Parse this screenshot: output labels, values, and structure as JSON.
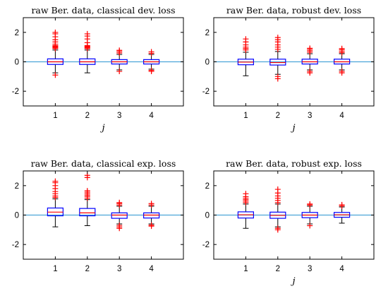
{
  "colors": {
    "box": "#0000ff",
    "median": "#ff0000",
    "outlier": "#ff0000",
    "whisker": "#000000",
    "zero_line": "#4ca6d9",
    "axes": "#000000"
  },
  "chart_data": [
    {
      "type": "box",
      "title": "raw Ber. data, classical dev. loss",
      "xlabel": "j",
      "ylabel": "",
      "categories": [
        "1",
        "2",
        "3",
        "4"
      ],
      "ylim": [
        -3,
        3
      ],
      "yticks": [
        -2,
        0,
        2
      ],
      "reference_line_y": 0,
      "boxes": [
        {
          "q1": -0.18,
          "median": 0.0,
          "q3": 0.2,
          "wlow": -0.75,
          "whigh": 0.8,
          "outliers": [
            -0.9,
            0.9,
            0.95,
            1.0,
            1.05,
            1.1,
            1.2,
            1.35,
            1.5,
            1.7,
            1.9,
            2.0
          ]
        },
        {
          "q1": -0.18,
          "median": 0.0,
          "q3": 0.2,
          "wlow": -0.75,
          "whigh": 0.8,
          "outliers": [
            0.9,
            0.95,
            1.0,
            1.05,
            1.1,
            1.3,
            1.55,
            1.75,
            1.9
          ]
        },
        {
          "q1": -0.15,
          "median": 0.0,
          "q3": 0.15,
          "wlow": -0.55,
          "whigh": 0.5,
          "outliers": [
            -0.65,
            0.6,
            0.7,
            0.78
          ]
        },
        {
          "q1": -0.15,
          "median": 0.0,
          "q3": 0.15,
          "wlow": -0.5,
          "whigh": 0.5,
          "outliers": [
            -0.65,
            -0.58,
            0.58,
            0.68
          ]
        }
      ]
    },
    {
      "type": "box",
      "title": "raw Ber. data, robust dev. loss",
      "xlabel": "j",
      "ylabel": "",
      "categories": [
        "1",
        "2",
        "3",
        "4"
      ],
      "ylim": [
        -3,
        3
      ],
      "yticks": [
        -2,
        0,
        2
      ],
      "reference_line_y": 0,
      "boxes": [
        {
          "q1": -0.2,
          "median": -0.02,
          "q3": 0.18,
          "wlow": -0.95,
          "whigh": 0.65,
          "outliers": [
            0.8,
            0.9,
            1.0,
            1.15,
            1.35,
            1.55
          ]
        },
        {
          "q1": -0.22,
          "median": -0.05,
          "q3": 0.18,
          "wlow": -0.85,
          "whigh": 0.7,
          "outliers": [
            -1.15,
            -1.0,
            0.85,
            1.0,
            1.15,
            1.35,
            1.5,
            1.65
          ]
        },
        {
          "q1": -0.15,
          "median": 0.0,
          "q3": 0.18,
          "wlow": -0.55,
          "whigh": 0.55,
          "outliers": [
            -0.75,
            -0.65,
            0.65,
            0.75,
            0.85,
            0.92
          ]
        },
        {
          "q1": -0.15,
          "median": 0.0,
          "q3": 0.18,
          "wlow": -0.55,
          "whigh": 0.55,
          "outliers": [
            -0.75,
            -0.65,
            0.62,
            0.72,
            0.82,
            0.9
          ]
        }
      ]
    },
    {
      "type": "box",
      "title": "raw Ber. data, classical exp. loss",
      "xlabel": "",
      "ylabel": "",
      "categories": [
        "1",
        "2",
        "3",
        "4"
      ],
      "ylim": [
        -3,
        3
      ],
      "yticks": [
        -2,
        0,
        2
      ],
      "reference_line_y": 0,
      "boxes": [
        {
          "q1": -0.05,
          "median": 0.2,
          "q3": 0.48,
          "wlow": -0.8,
          "whigh": 1.1,
          "outliers": [
            1.2,
            1.3,
            1.45,
            1.6,
            1.8,
            2.0,
            2.2,
            2.3
          ]
        },
        {
          "q1": -0.05,
          "median": 0.15,
          "q3": 0.45,
          "wlow": -0.72,
          "whigh": 1.05,
          "outliers": [
            1.15,
            1.25,
            1.35,
            1.45,
            1.55,
            1.65,
            2.55,
            2.7
          ]
        },
        {
          "q1": -0.22,
          "median": 0.0,
          "q3": 0.15,
          "wlow": -0.6,
          "whigh": 0.6,
          "outliers": [
            -0.9,
            -0.8,
            -0.7,
            0.68,
            0.78,
            0.85
          ]
        },
        {
          "q1": -0.2,
          "median": 0.0,
          "q3": 0.15,
          "wlow": -0.6,
          "whigh": 0.6,
          "outliers": [
            -0.75,
            -0.68,
            0.68,
            0.78
          ]
        }
      ]
    },
    {
      "type": "box",
      "title": "raw Ber. data, robust exp. loss",
      "xlabel": "j",
      "ylabel": "",
      "categories": [
        "1",
        "2",
        "3",
        "4"
      ],
      "ylim": [
        -3,
        3
      ],
      "yticks": [
        -2,
        0,
        2
      ],
      "reference_line_y": 0,
      "boxes": [
        {
          "q1": -0.2,
          "median": 0.02,
          "q3": 0.22,
          "wlow": -0.9,
          "whigh": 0.75,
          "outliers": [
            0.85,
            0.95,
            1.05,
            1.15,
            1.25,
            1.45
          ]
        },
        {
          "q1": -0.22,
          "median": -0.02,
          "q3": 0.2,
          "wlow": -0.8,
          "whigh": 0.75,
          "outliers": [
            -1.0,
            -0.9,
            0.85,
            1.0,
            1.15,
            1.3,
            1.5,
            1.75
          ]
        },
        {
          "q1": -0.18,
          "median": 0.0,
          "q3": 0.18,
          "wlow": -0.6,
          "whigh": 0.6,
          "outliers": [
            -0.72,
            0.68,
            0.75
          ]
        },
        {
          "q1": -0.15,
          "median": 0.02,
          "q3": 0.18,
          "wlow": -0.55,
          "whigh": 0.55,
          "outliers": [
            0.62,
            0.7
          ]
        }
      ]
    }
  ]
}
